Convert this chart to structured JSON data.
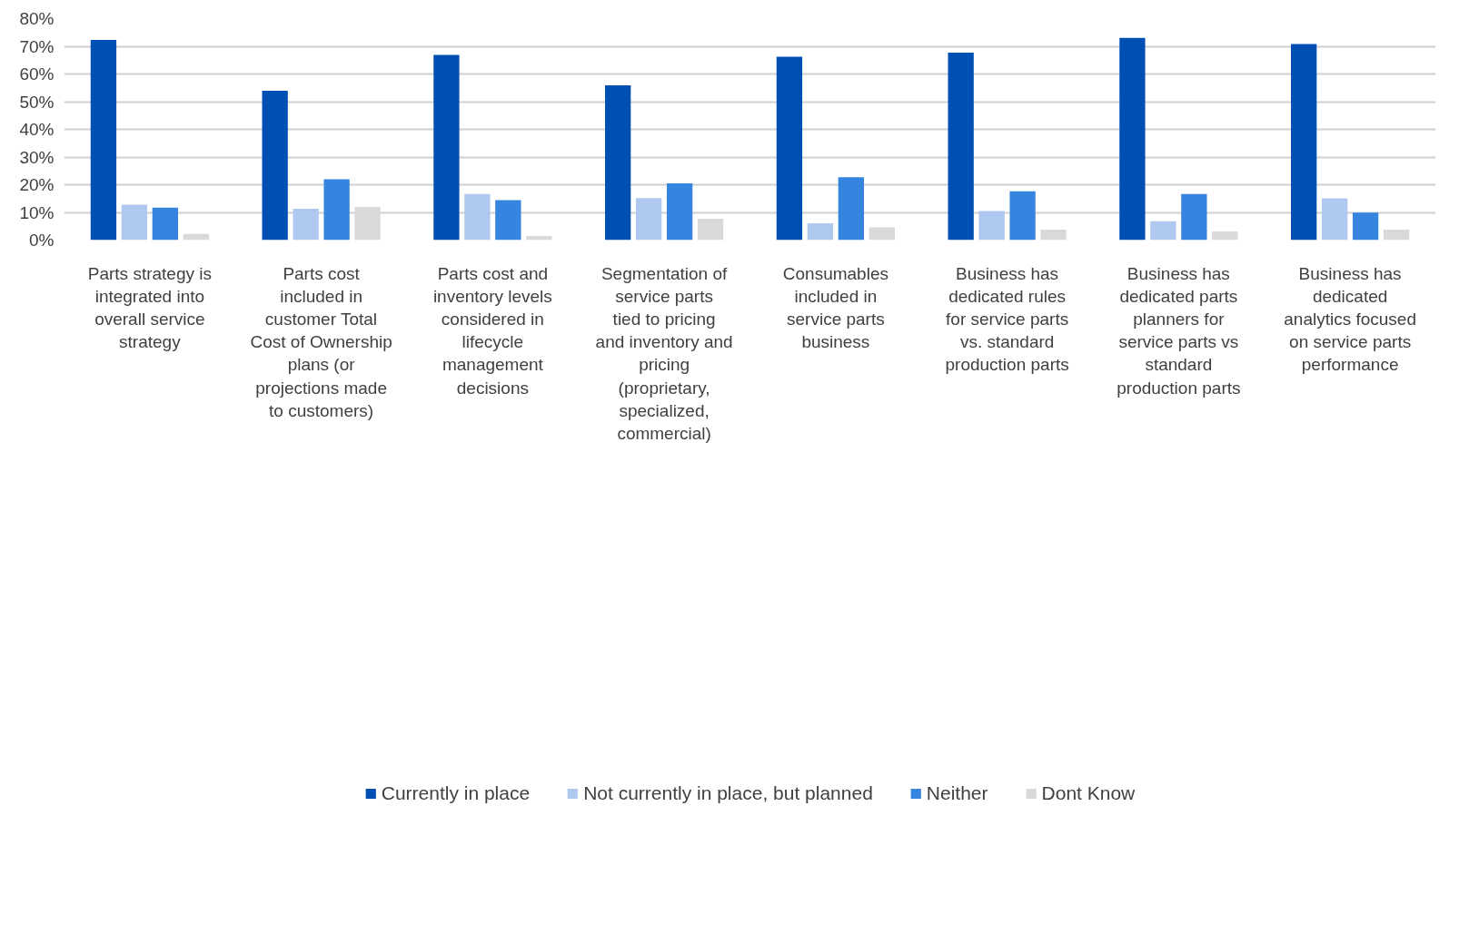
{
  "chart_data": {
    "type": "bar",
    "categories": [
      "Parts strategy is integrated into overall service strategy",
      "Parts cost included in customer Total Cost of Ownership plans (or projections made to customers)",
      "Parts cost and inventory levels considered in lifecycle management decisions",
      "Segmentation of service parts tied to pricing and inventory and pricing (proprietary, specialized, commercial)",
      "Consumables included in service parts business",
      "Business has dedicated rules for service parts vs. standard production parts",
      "Business has dedicated parts planners for service parts vs standard production parts",
      "Business has dedicated analytics focused on service parts performance"
    ],
    "series": [
      {
        "name": "Currently in place",
        "color": "#0050b4",
        "values": [
          72.3,
          53.9,
          66.9,
          55.9,
          66.2,
          67.7,
          73.0,
          70.8
        ]
      },
      {
        "name": "Not currently in place, but planned",
        "color": "#aec8f0",
        "values": [
          12.8,
          11.3,
          16.6,
          15.2,
          6.1,
          10.5,
          6.8,
          15.1
        ]
      },
      {
        "name": "Neither",
        "color": "#3585e0",
        "values": [
          11.7,
          22.0,
          14.4,
          20.5,
          22.7,
          17.6,
          16.6,
          9.9
        ]
      },
      {
        "name": "Dont Know",
        "color": "#d9d9d9",
        "values": [
          2.2,
          12.0,
          1.5,
          7.7,
          4.6,
          3.8,
          3.1,
          3.8
        ]
      }
    ],
    "ylim": [
      0,
      80
    ],
    "yticks": [
      {
        "value": 0,
        "label": "0%"
      },
      {
        "value": 10,
        "label": "10%"
      },
      {
        "value": 20,
        "label": "20%"
      },
      {
        "value": 30,
        "label": "30%"
      },
      {
        "value": 40,
        "label": "40%"
      },
      {
        "value": 50,
        "label": "50%"
      },
      {
        "value": 60,
        "label": "60%"
      },
      {
        "value": 70,
        "label": "70%"
      },
      {
        "value": 80,
        "label": "80%"
      }
    ],
    "grid": "y",
    "legend": "bottom"
  }
}
